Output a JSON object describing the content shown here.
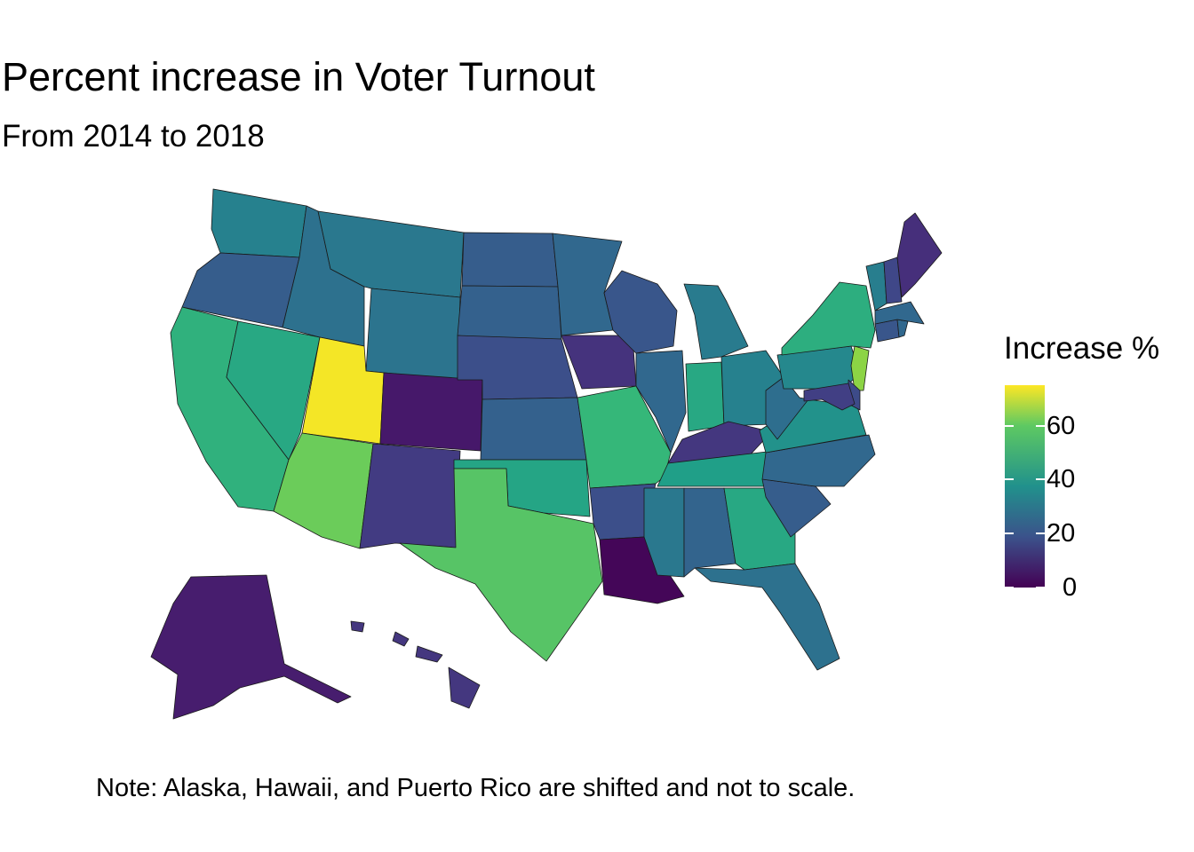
{
  "title": "Percent increase in Voter Turnout",
  "subtitle": "From 2014 to 2018",
  "note": "Note: Alaska, Hawaii, and Puerto Rico are shifted and not to scale.",
  "legend": {
    "title": "Increase %",
    "ticks": [
      "0",
      "20",
      "40",
      "60"
    ],
    "tick_values": [
      0,
      20,
      40,
      60
    ],
    "range": [
      0,
      75
    ],
    "palette": "viridis"
  },
  "map_data": {
    "type": "choropleth",
    "value_name": "Increase %",
    "states": [
      {
        "id": "WA",
        "value": 33
      },
      {
        "id": "OR",
        "value": 22
      },
      {
        "id": "CA",
        "value": 48
      },
      {
        "id": "NV",
        "value": 45
      },
      {
        "id": "ID",
        "value": 28
      },
      {
        "id": "MT",
        "value": 30
      },
      {
        "id": "WY",
        "value": 29
      },
      {
        "id": "UT",
        "value": 74
      },
      {
        "id": "CO",
        "value": 5
      },
      {
        "id": "AZ",
        "value": 58
      },
      {
        "id": "NM",
        "value": 13
      },
      {
        "id": "ND",
        "value": 22
      },
      {
        "id": "SD",
        "value": 23
      },
      {
        "id": "NE",
        "value": 18
      },
      {
        "id": "KS",
        "value": 23
      },
      {
        "id": "OK",
        "value": 44
      },
      {
        "id": "TX",
        "value": 55
      },
      {
        "id": "MN",
        "value": 25
      },
      {
        "id": "IA",
        "value": 11
      },
      {
        "id": "MO",
        "value": 50
      },
      {
        "id": "AR",
        "value": 18
      },
      {
        "id": "LA",
        "value": 1
      },
      {
        "id": "WI",
        "value": 20
      },
      {
        "id": "IL",
        "value": 25
      },
      {
        "id": "MI",
        "value": 31
      },
      {
        "id": "IN",
        "value": 45
      },
      {
        "id": "OH",
        "value": 33
      },
      {
        "id": "KY",
        "value": 12
      },
      {
        "id": "TN",
        "value": 42
      },
      {
        "id": "MS",
        "value": 30
      },
      {
        "id": "AL",
        "value": 24
      },
      {
        "id": "GA",
        "value": 45
      },
      {
        "id": "FL",
        "value": 28
      },
      {
        "id": "SC",
        "value": 22
      },
      {
        "id": "NC",
        "value": 25
      },
      {
        "id": "VA",
        "value": 38
      },
      {
        "id": "WV",
        "value": 27
      },
      {
        "id": "PA",
        "value": 35
      },
      {
        "id": "NY",
        "value": 47
      },
      {
        "id": "NJ",
        "value": 62
      },
      {
        "id": "DE",
        "value": 17
      },
      {
        "id": "MD",
        "value": 14
      },
      {
        "id": "CT",
        "value": 20
      },
      {
        "id": "RI",
        "value": 25
      },
      {
        "id": "MA",
        "value": 25
      },
      {
        "id": "VT",
        "value": 32
      },
      {
        "id": "NH",
        "value": 16
      },
      {
        "id": "ME",
        "value": 10
      },
      {
        "id": "AK",
        "value": 6
      },
      {
        "id": "HI",
        "value": 12
      }
    ]
  }
}
